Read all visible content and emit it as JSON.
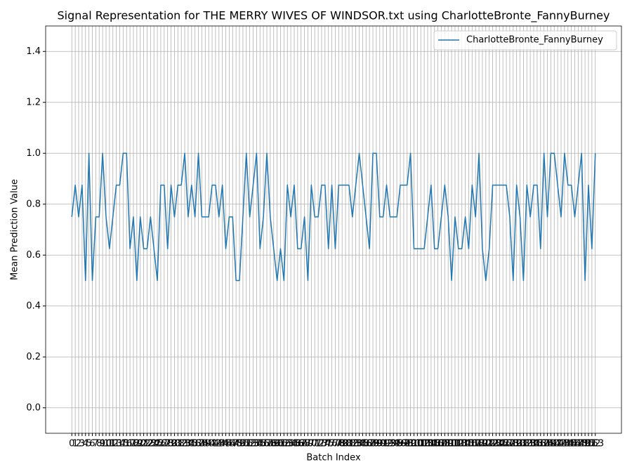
{
  "chart_data": {
    "type": "line",
    "title": "Signal Representation for THE MERRY WIVES OF WINDSOR.txt using CharlotteBronte_FannyBurney",
    "xlabel": "Batch Index",
    "ylabel": "Mean Prediction Value",
    "x": [
      0,
      1,
      2,
      3,
      4,
      5,
      6,
      7,
      8,
      9,
      10,
      11,
      12,
      13,
      14,
      15,
      16,
      17,
      18,
      19,
      20,
      21,
      22,
      23,
      24,
      25,
      26,
      27,
      28,
      29,
      30,
      31,
      32,
      33,
      34,
      35,
      36,
      37,
      38,
      39,
      40,
      41,
      42,
      43,
      44,
      45,
      46,
      47,
      48,
      49,
      50,
      51,
      52,
      53,
      54,
      55,
      56,
      57,
      58,
      59,
      60,
      61,
      62,
      63,
      64,
      65,
      66,
      67,
      68,
      69,
      70,
      71,
      72,
      73,
      74,
      75,
      76,
      77,
      78,
      79,
      80,
      81,
      82,
      83,
      84,
      85,
      86,
      87,
      88,
      89,
      90,
      91,
      92,
      93,
      94,
      95,
      96,
      97,
      98,
      99,
      100,
      101,
      102,
      103,
      104,
      105,
      106,
      107,
      108,
      109,
      110,
      111,
      112,
      113,
      114,
      115,
      116,
      117,
      118,
      119,
      120,
      121,
      122,
      123,
      124,
      125,
      126,
      127,
      128,
      129,
      130,
      131,
      132,
      133,
      134,
      135,
      136,
      137,
      138,
      139,
      140,
      141,
      142,
      143,
      144,
      145,
      146,
      147,
      148,
      149,
      150,
      151,
      152,
      153
    ],
    "series": [
      {
        "name": "CharlotteBronte_FannyBurney",
        "color": "#1f77b4",
        "values": [
          0.75,
          0.875,
          0.75,
          0.875,
          0.5,
          1,
          0.5,
          0.75,
          0.75,
          1,
          0.75,
          0.625,
          0.75,
          0.875,
          0.875,
          1,
          1,
          0.625,
          0.75,
          0.5,
          0.75,
          0.625,
          0.625,
          0.75,
          0.625,
          0.5,
          0.875,
          0.875,
          0.625,
          0.875,
          0.75,
          0.875,
          0.875,
          1,
          0.75,
          0.875,
          0.75,
          1,
          0.75,
          0.75,
          0.75,
          0.875,
          0.875,
          0.75,
          0.875,
          0.625,
          0.75,
          0.75,
          0.5,
          0.5,
          0.75,
          1,
          0.75,
          0.875,
          1,
          0.625,
          0.75,
          1,
          0.75,
          0.625,
          0.5,
          0.625,
          0.5,
          0.875,
          0.75,
          0.875,
          0.625,
          0.625,
          0.75,
          0.5,
          0.875,
          0.75,
          0.75,
          0.875,
          0.875,
          0.625,
          0.875,
          0.625,
          0.875,
          0.875,
          0.875,
          0.875,
          0.75,
          0.875,
          1,
          0.875,
          0.75,
          0.625,
          1,
          1,
          0.75,
          0.75,
          0.875,
          0.75,
          0.75,
          0.75,
          0.875,
          0.875,
          0.875,
          1,
          0.625,
          0.625,
          0.625,
          0.625,
          0.75,
          0.875,
          0.625,
          0.625,
          0.75,
          0.875,
          0.75,
          0.5,
          0.75,
          0.625,
          0.625,
          0.75,
          0.625,
          0.875,
          0.75,
          1,
          0.625,
          0.5,
          0.625,
          0.875,
          0.875,
          0.875,
          0.875,
          0.875,
          0.75,
          0.5,
          0.875,
          0.75,
          0.5,
          0.875,
          0.75,
          0.875,
          0.875,
          0.625,
          1,
          0.75,
          1,
          1,
          0.875,
          0.75,
          1,
          0.875,
          0.875,
          0.75,
          0.875,
          1,
          0.5,
          0.875,
          0.625,
          1
        ]
      }
    ],
    "xlim": [
      -7.65,
      160.65
    ],
    "xticks": [
      0,
      1,
      2,
      3,
      4,
      5,
      6,
      7,
      8,
      9,
      10,
      11,
      12,
      13,
      14,
      15,
      16,
      17,
      18,
      19,
      20,
      21,
      22,
      23,
      24,
      25,
      26,
      27,
      28,
      29,
      30,
      31,
      32,
      33,
      34,
      35,
      36,
      37,
      38,
      39,
      40,
      41,
      42,
      43,
      44,
      45,
      46,
      47,
      48,
      49,
      50,
      51,
      52,
      53,
      54,
      55,
      56,
      57,
      58,
      59,
      60,
      61,
      62,
      63,
      64,
      65,
      66,
      67,
      68,
      69,
      70,
      71,
      72,
      73,
      74,
      75,
      76,
      77,
      78,
      79,
      80,
      81,
      82,
      83,
      84,
      85,
      86,
      87,
      88,
      89,
      90,
      91,
      92,
      93,
      94,
      95,
      96,
      97,
      98,
      99,
      100,
      101,
      102,
      103,
      104,
      105,
      106,
      107,
      108,
      109,
      110,
      111,
      112,
      113,
      114,
      115,
      116,
      117,
      118,
      119,
      120,
      121,
      122,
      123,
      124,
      125,
      126,
      127,
      128,
      129,
      130,
      131,
      132,
      133,
      134,
      135,
      136,
      137,
      138,
      139,
      140,
      141,
      142,
      143,
      144,
      145,
      146,
      147,
      148,
      149,
      150,
      151,
      152,
      153
    ],
    "ylim": [
      -0.1,
      1.5
    ],
    "yticks": [
      {
        "value": 0,
        "label": "0.0"
      },
      0.2,
      0.4,
      0.6,
      0.8,
      {
        "value": 1,
        "label": "1.0"
      },
      1.2,
      1.4
    ],
    "grid": true,
    "legend": "upper right"
  }
}
